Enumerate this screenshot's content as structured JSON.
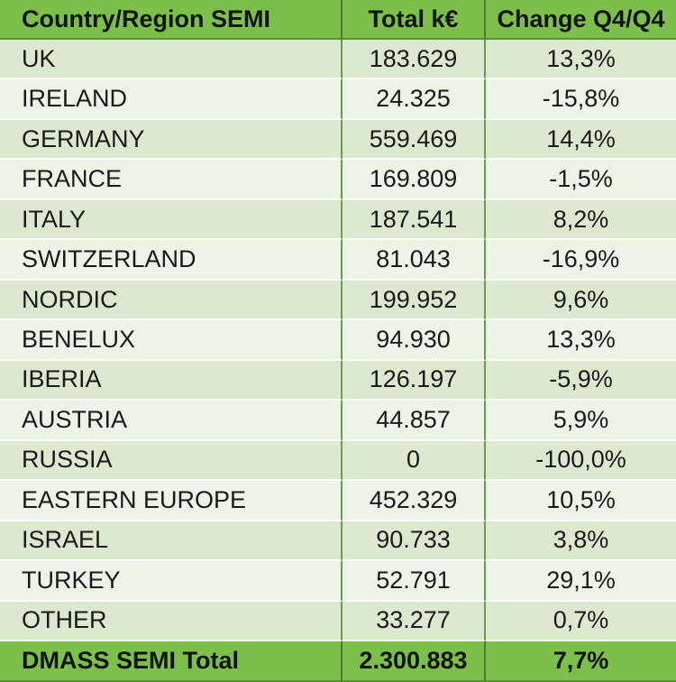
{
  "table": {
    "headers": [
      "Country/Region SEMI",
      "Total k€",
      "Change Q4/Q4"
    ],
    "rows": [
      [
        "UK",
        "183.629",
        "13,3%"
      ],
      [
        "IRELAND",
        "24.325",
        "-15,8%"
      ],
      [
        "GERMANY",
        "559.469",
        "14,4%"
      ],
      [
        "FRANCE",
        "169.809",
        "-1,5%"
      ],
      [
        "ITALY",
        "187.541",
        "8,2%"
      ],
      [
        "SWITZERLAND",
        "81.043",
        "-16,9%"
      ],
      [
        "NORDIC",
        "199.952",
        "9,6%"
      ],
      [
        "BENELUX",
        "94.930",
        "13,3%"
      ],
      [
        "IBERIA",
        "126.197",
        "-5,9%"
      ],
      [
        "AUSTRIA",
        "44.857",
        "5,9%"
      ],
      [
        "RUSSIA",
        "0",
        "-100,0%"
      ],
      [
        "EASTERN EUROPE",
        "452.329",
        "10,5%"
      ],
      [
        "ISRAEL",
        "90.733",
        "3,8%"
      ],
      [
        "TURKEY",
        "52.791",
        "29,1%"
      ],
      [
        "OTHER",
        "33.277",
        "0,7%"
      ]
    ],
    "total": [
      "DMASS SEMI Total",
      "2.300.883",
      "7,7%"
    ]
  },
  "colors": {
    "header_bg": "#7cbf4a",
    "row_dark": "#dbe9cf",
    "row_light": "#ecf4e6",
    "grid_line": "#6a9a4a"
  }
}
